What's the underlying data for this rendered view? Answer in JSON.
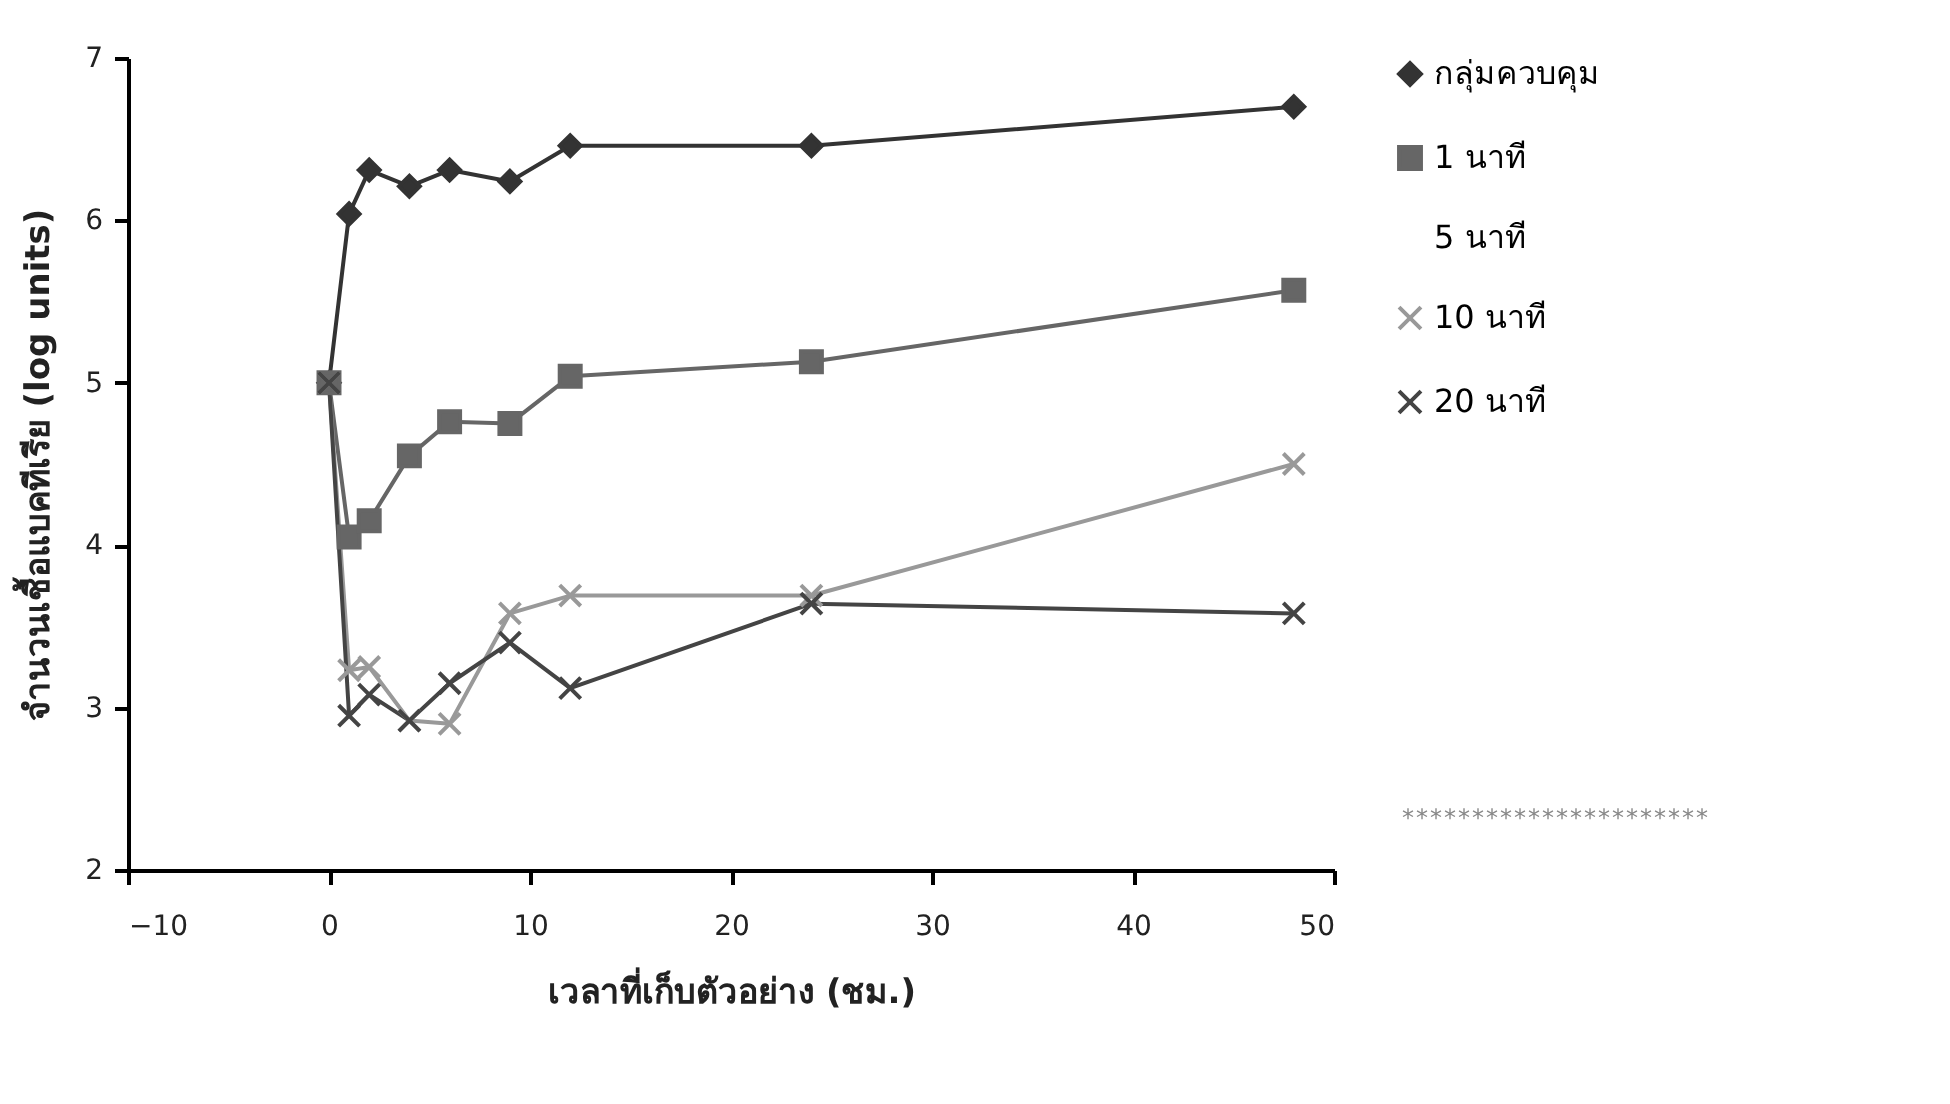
{
  "chart_data": {
    "type": "line",
    "xlabel": "เวลาที่เก็บตัวอย่าง (ชม.)",
    "ylabel": "จำนวนเชื้อแบคทีเรีย (log units)",
    "x": [
      0,
      1,
      2,
      4,
      6,
      9,
      12,
      24,
      48
    ],
    "series": [
      {
        "name": "กลุ่มควบคุม",
        "color": "#333333",
        "marker": "diamond",
        "values": [
          5,
          6.04,
          6.31,
          6.21,
          6.31,
          6.24,
          6.46,
          6.46,
          6.7
        ]
      },
      {
        "name": "1 นาที",
        "color": "#666666",
        "marker": "square",
        "values": [
          5,
          4.05,
          4.15,
          4.55,
          4.76,
          4.75,
          5.04,
          5.13,
          5.57
        ]
      },
      {
        "name": "5 นาที",
        "marker": "none",
        "values": [
          null,
          null,
          null,
          null,
          null,
          null,
          null,
          null,
          null
        ]
      },
      {
        "name": "10 นาที",
        "color": "#999999",
        "marker": "cross",
        "values": [
          5,
          3.23,
          3.25,
          2.92,
          2.9,
          3.58,
          3.69,
          3.69,
          4.5
        ]
      },
      {
        "name": "20 นาที",
        "color": "#444444",
        "marker": "cross",
        "values": [
          5,
          2.95,
          3.08,
          2.92,
          3.15,
          3.4,
          3.12,
          3.64,
          3.58
        ]
      }
    ],
    "xlim": [
      -10,
      50
    ],
    "xticks": [
      -10,
      0,
      10,
      20,
      30,
      40,
      50
    ],
    "ylim": [
      2,
      7
    ],
    "yticks": [
      2,
      3,
      4,
      5,
      6,
      7
    ],
    "legend": "right",
    "grid": false,
    "annotations": [
      "*",
      "*",
      "*",
      "*",
      "*",
      "*",
      "*",
      "*",
      "*",
      "*",
      "*",
      "*",
      "*",
      "*",
      "*",
      "*",
      "*",
      "*",
      "*",
      "*",
      "*",
      "*"
    ]
  }
}
